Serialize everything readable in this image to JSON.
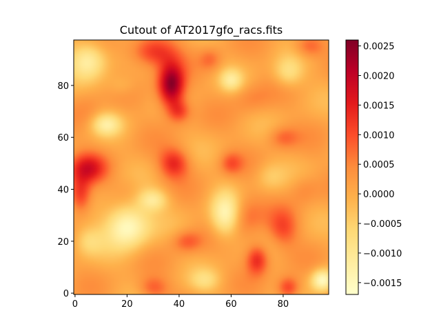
{
  "chart_data": {
    "type": "heatmap",
    "title": "Cutout of AT2017gfo_racs.fits",
    "xlabel": "",
    "ylabel": "",
    "colormap": "YlOrRd",
    "origin": "lower",
    "xlim": [
      -0.5,
      97.5
    ],
    "ylim": [
      -0.5,
      97.5
    ],
    "x_ticks": [
      0,
      20,
      40,
      60,
      80
    ],
    "y_ticks": [
      0,
      20,
      40,
      60,
      80
    ],
    "colorbar": {
      "vmin": -0.0017,
      "vmax": 0.0026,
      "ticks": [
        -0.0015,
        -0.001,
        -0.0005,
        0.0,
        0.0005,
        0.001,
        0.0015,
        0.002,
        0.0025
      ],
      "tick_labels": [
        "−0.0015",
        "−0.0010",
        "−0.0005",
        "0.0000",
        "0.0005",
        "0.0010",
        "0.0015",
        "0.0020",
        "0.0025"
      ]
    },
    "grid": false,
    "features": [
      {
        "x": 37,
        "y": 80,
        "sx": 3.5,
        "sy": 6,
        "value": 0.0026
      },
      {
        "x": 30,
        "y": 93,
        "sx": 6,
        "sy": 4,
        "value": 0.0014
      },
      {
        "x": 40,
        "y": 70,
        "sx": 3,
        "sy": 3,
        "value": 0.0011
      },
      {
        "x": 5,
        "y": 48,
        "sx": 5,
        "sy": 4,
        "value": 0.0015
      },
      {
        "x": 2,
        "y": 38,
        "sx": 3,
        "sy": 5,
        "value": 0.0014
      },
      {
        "x": 38,
        "y": 50,
        "sx": 4,
        "sy": 4,
        "value": 0.0014
      },
      {
        "x": 60,
        "y": 50,
        "sx": 3,
        "sy": 3,
        "value": 0.0009
      },
      {
        "x": 52,
        "y": 90,
        "sx": 3,
        "sy": 3,
        "value": 0.0007
      },
      {
        "x": 70,
        "y": 13,
        "sx": 3,
        "sy": 4,
        "value": 0.0015
      },
      {
        "x": 82,
        "y": 2,
        "sx": 3,
        "sy": 3,
        "value": 0.0013
      },
      {
        "x": 65,
        "y": 30,
        "sx": 5,
        "sy": 6,
        "value": 0.0008
      },
      {
        "x": 80,
        "y": 25,
        "sx": 4,
        "sy": 5,
        "value": 0.001
      },
      {
        "x": 43,
        "y": 20,
        "sx": 4,
        "sy": 3,
        "value": 0.0009
      },
      {
        "x": 30,
        "y": 2,
        "sx": 4,
        "sy": 3,
        "value": 0.0009
      },
      {
        "x": 80,
        "y": 60,
        "sx": 4,
        "sy": 3,
        "value": 0.0008
      },
      {
        "x": 90,
        "y": 95,
        "sx": 4,
        "sy": 3,
        "value": 0.0009
      },
      {
        "x": 68,
        "y": 75,
        "sx": 5,
        "sy": 4,
        "value": 0.0005
      },
      {
        "x": 5,
        "y": 70,
        "sx": 4,
        "sy": 6,
        "value": 0.0004
      },
      {
        "x": 88,
        "y": 40,
        "sx": 4,
        "sy": 4,
        "value": 0.0005
      },
      {
        "x": 20,
        "y": 40,
        "sx": 4,
        "sy": 4,
        "value": 0.0003
      },
      {
        "x": 5,
        "y": 90,
        "sx": 5,
        "sy": 5,
        "value": -0.0012
      },
      {
        "x": 20,
        "y": 26,
        "sx": 6,
        "sy": 6,
        "value": -0.0017
      },
      {
        "x": 58,
        "y": 30,
        "sx": 4,
        "sy": 6,
        "value": -0.0015
      },
      {
        "x": 95,
        "y": 5,
        "sx": 3,
        "sy": 3,
        "value": -0.0016
      },
      {
        "x": 60,
        "y": 82,
        "sx": 3,
        "sy": 3,
        "value": -0.0009
      },
      {
        "x": 12,
        "y": 65,
        "sx": 4,
        "sy": 3,
        "value": -0.001
      },
      {
        "x": 82,
        "y": 85,
        "sx": 4,
        "sy": 4,
        "value": -0.0008
      },
      {
        "x": 30,
        "y": 36,
        "sx": 4,
        "sy": 3,
        "value": -0.001
      },
      {
        "x": 5,
        "y": 20,
        "sx": 4,
        "sy": 4,
        "value": -0.0006
      },
      {
        "x": 75,
        "y": 45,
        "sx": 4,
        "sy": 4,
        "value": -0.0004
      },
      {
        "x": 50,
        "y": 5,
        "sx": 4,
        "sy": 3,
        "value": -0.0006
      },
      {
        "x": 18,
        "y": 80,
        "sx": 4,
        "sy": 3,
        "value": -0.0003
      }
    ],
    "background_value": 0.0001
  }
}
